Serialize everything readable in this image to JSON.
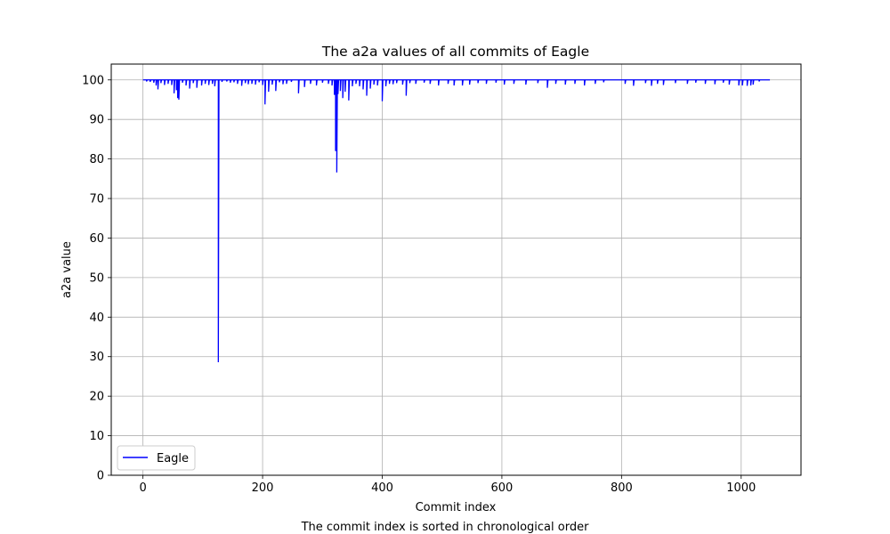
{
  "caption": "The commit index is sorted in chronological order",
  "chart_data": {
    "type": "line",
    "title": "The a2a values of all commits of Eagle",
    "xlabel": "Commit index",
    "ylabel": "a2a value",
    "xlim": [
      -53,
      1100
    ],
    "ylim": [
      0,
      104
    ],
    "xticks": [
      0,
      200,
      400,
      600,
      800,
      1000
    ],
    "yticks": [
      0,
      10,
      20,
      30,
      40,
      50,
      60,
      70,
      80,
      90,
      100
    ],
    "grid": true,
    "legend": "lower-left",
    "series": [
      {
        "name": "Eagle",
        "color": "#0000ff",
        "baseline": 100,
        "x_range": [
          0,
          1048
        ],
        "dips": [
          [
            6,
            99.6
          ],
          [
            12,
            99.5
          ],
          [
            18,
            99.3
          ],
          [
            22,
            98.6
          ],
          [
            25,
            97.6
          ],
          [
            30,
            99.2
          ],
          [
            36,
            98.7
          ],
          [
            42,
            99.0
          ],
          [
            48,
            98.7
          ],
          [
            52,
            96.6
          ],
          [
            56,
            97.4
          ],
          [
            58,
            95.4
          ],
          [
            60,
            95.0
          ],
          [
            66,
            99.3
          ],
          [
            72,
            98.6
          ],
          [
            78,
            97.8
          ],
          [
            84,
            99.2
          ],
          [
            90,
            98.0
          ],
          [
            98,
            98.6
          ],
          [
            104,
            99.0
          ],
          [
            110,
            98.7
          ],
          [
            116,
            99.0
          ],
          [
            120,
            98.4
          ],
          [
            126,
            28.6
          ],
          [
            132,
            99.5
          ],
          [
            140,
            99.6
          ],
          [
            146,
            99.3
          ],
          [
            152,
            99.4
          ],
          [
            158,
            99.0
          ],
          [
            165,
            98.5
          ],
          [
            171,
            99.2
          ],
          [
            176,
            98.9
          ],
          [
            182,
            99.0
          ],
          [
            188,
            98.8
          ],
          [
            194,
            99.4
          ],
          [
            200,
            98.7
          ],
          [
            204,
            93.8
          ],
          [
            210,
            97.0
          ],
          [
            216,
            98.8
          ],
          [
            222,
            97.2
          ],
          [
            228,
            99.4
          ],
          [
            234,
            98.9
          ],
          [
            240,
            99.0
          ],
          [
            248,
            99.5
          ],
          [
            260,
            96.6
          ],
          [
            270,
            98.2
          ],
          [
            280,
            99.0
          ],
          [
            290,
            98.6
          ],
          [
            300,
            99.3
          ],
          [
            310,
            99.0
          ],
          [
            316,
            98.6
          ],
          [
            320,
            96.2
          ],
          [
            322,
            82.0
          ],
          [
            324,
            76.6
          ],
          [
            326,
            96.4
          ],
          [
            330,
            97.2
          ],
          [
            334,
            95.4
          ],
          [
            338,
            97.0
          ],
          [
            344,
            94.8
          ],
          [
            350,
            98.4
          ],
          [
            356,
            99.0
          ],
          [
            362,
            98.4
          ],
          [
            368,
            97.6
          ],
          [
            374,
            96.0
          ],
          [
            380,
            97.8
          ],
          [
            386,
            98.8
          ],
          [
            392,
            98.6
          ],
          [
            400,
            94.6
          ],
          [
            406,
            98.4
          ],
          [
            412,
            99.0
          ],
          [
            418,
            98.9
          ],
          [
            424,
            99.2
          ],
          [
            434,
            98.8
          ],
          [
            440,
            96.0
          ],
          [
            446,
            99.2
          ],
          [
            456,
            99.0
          ],
          [
            470,
            99.3
          ],
          [
            480,
            99.0
          ],
          [
            494,
            98.6
          ],
          [
            510,
            99.0
          ],
          [
            520,
            98.6
          ],
          [
            534,
            98.6
          ],
          [
            546,
            98.8
          ],
          [
            560,
            99.2
          ],
          [
            574,
            99.0
          ],
          [
            590,
            99.3
          ],
          [
            604,
            98.8
          ],
          [
            620,
            99.0
          ],
          [
            640,
            98.8
          ],
          [
            660,
            99.2
          ],
          [
            676,
            98.0
          ],
          [
            690,
            99.0
          ],
          [
            706,
            98.8
          ],
          [
            722,
            99.0
          ],
          [
            738,
            98.6
          ],
          [
            756,
            99.0
          ],
          [
            770,
            99.4
          ],
          [
            806,
            99.0
          ],
          [
            820,
            98.5
          ],
          [
            840,
            99.2
          ],
          [
            850,
            98.5
          ],
          [
            860,
            99.0
          ],
          [
            870,
            98.7
          ],
          [
            890,
            99.2
          ],
          [
            910,
            99.0
          ],
          [
            924,
            99.3
          ],
          [
            940,
            99.0
          ],
          [
            956,
            98.9
          ],
          [
            970,
            99.3
          ],
          [
            980,
            98.8
          ],
          [
            996,
            98.6
          ],
          [
            1002,
            98.6
          ],
          [
            1010,
            98.5
          ],
          [
            1016,
            98.6
          ],
          [
            1020,
            98.8
          ],
          [
            1030,
            99.6
          ]
        ]
      }
    ]
  }
}
